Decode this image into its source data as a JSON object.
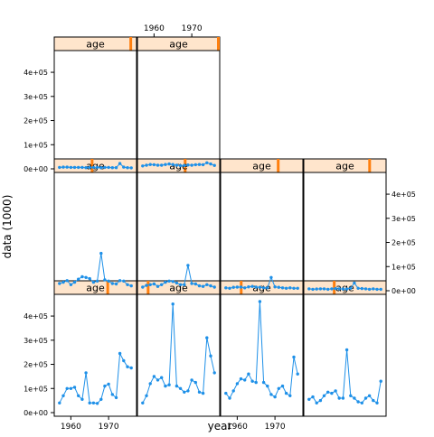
{
  "figure": {
    "xlabel": "year",
    "ylabel": "data (1000)",
    "strip_label": "age"
  },
  "colors": {
    "line": "#1e90e8",
    "strip_bg": "#ffe5cc",
    "strip_marker": "#ff7f0e",
    "frame": "#000000"
  },
  "chart_data": {
    "type": "line",
    "layout": "lattice 4 columns x 3 rows (bottom-to-top), 10 panels",
    "x": [
      1957,
      1958,
      1959,
      1960,
      1961,
      1962,
      1963,
      1964,
      1965,
      1966,
      1967,
      1968,
      1969,
      1970,
      1971,
      1972,
      1973,
      1974,
      1975,
      1976
    ],
    "xlim": [
      1955.6,
      1977.4
    ],
    "ylim": [
      -15000,
      490000
    ],
    "x_ticks": [
      1960,
      1970
    ],
    "x_tick_labels": [
      "1960",
      "1970"
    ],
    "y_ticks": [
      0,
      100000,
      200000,
      300000,
      400000
    ],
    "y_tick_labels": [
      "0e+00",
      "1e+05",
      "2e+05",
      "3e+05",
      "4e+05"
    ],
    "grid": false,
    "legend": "none",
    "panels": [
      {
        "row": 0,
        "col": 0,
        "strip": "age",
        "marker_pos": 0.65,
        "values": [
          40000,
          70000,
          100000,
          100000,
          105000,
          70000,
          55000,
          165000,
          40000,
          40000,
          38000,
          55000,
          110000,
          118000,
          75000,
          62000,
          245000,
          215000,
          190000,
          185000
        ]
      },
      {
        "row": 0,
        "col": 1,
        "strip": "age",
        "marker_pos": 0.13,
        "values": [
          40000,
          70000,
          120000,
          150000,
          135000,
          145000,
          110000,
          115000,
          450000,
          110000,
          100000,
          85000,
          90000,
          135000,
          125000,
          85000,
          80000,
          310000,
          235000,
          165000
        ]
      },
      {
        "row": 0,
        "col": 2,
        "strip": "age",
        "marker_pos": 0.25,
        "values": [
          80000,
          60000,
          90000,
          120000,
          140000,
          135000,
          160000,
          130000,
          125000,
          460000,
          125000,
          110000,
          75000,
          65000,
          100000,
          110000,
          80000,
          70000,
          230000,
          160000
        ]
      },
      {
        "row": 0,
        "col": 3,
        "strip": "age",
        "marker_pos": 0.37,
        "values": [
          55000,
          65000,
          40000,
          50000,
          70000,
          85000,
          80000,
          90000,
          60000,
          60000,
          260000,
          70000,
          60000,
          45000,
          40000,
          60000,
          70000,
          50000,
          40000,
          130000
        ]
      },
      {
        "row": 1,
        "col": 0,
        "strip": "age",
        "marker_pos": 0.46,
        "values": [
          30000,
          35000,
          42000,
          25000,
          35000,
          48000,
          58000,
          55000,
          50000,
          35000,
          40000,
          155000,
          45000,
          40000,
          30000,
          28000,
          42000,
          40000,
          25000,
          20000
        ]
      },
      {
        "row": 1,
        "col": 1,
        "strip": "age",
        "marker_pos": 0.58,
        "values": [
          15000,
          22000,
          25000,
          28000,
          18000,
          25000,
          35000,
          40000,
          38000,
          32000,
          25000,
          25000,
          105000,
          30000,
          28000,
          20000,
          18000,
          25000,
          20000,
          15000
        ]
      },
      {
        "row": 1,
        "col": 2,
        "strip": "age",
        "marker_pos": 0.7,
        "values": [
          12000,
          10000,
          14000,
          15000,
          15000,
          12000,
          16000,
          18000,
          15000,
          14000,
          12000,
          12000,
          55000,
          16000,
          14000,
          12000,
          10000,
          12000,
          10000,
          10000
        ]
      },
      {
        "row": 1,
        "col": 3,
        "strip": "age",
        "marker_pos": 0.8,
        "values": [
          8000,
          6000,
          7000,
          8000,
          8000,
          6000,
          8000,
          9000,
          8000,
          7000,
          7000,
          10000,
          32000,
          10000,
          9000,
          8000,
          6000,
          8000,
          6000,
          6000
        ]
      },
      {
        "row": 2,
        "col": 0,
        "strip": "age",
        "marker_pos": 0.93,
        "values": [
          6000,
          7000,
          7000,
          6000,
          6000,
          6000,
          6000,
          5000,
          6000,
          6000,
          6000,
          5000,
          6000,
          6000,
          5000,
          5000,
          22000,
          7000,
          5000,
          4000
        ]
      },
      {
        "row": 2,
        "col": 1,
        "strip": "age",
        "marker_pos": 1.0,
        "values": [
          12000,
          15000,
          18000,
          17000,
          15000,
          15000,
          18000,
          20000,
          18000,
          15000,
          13000,
          14000,
          16000,
          15000,
          17000,
          18000,
          17000,
          25000,
          20000,
          14000
        ]
      }
    ]
  }
}
